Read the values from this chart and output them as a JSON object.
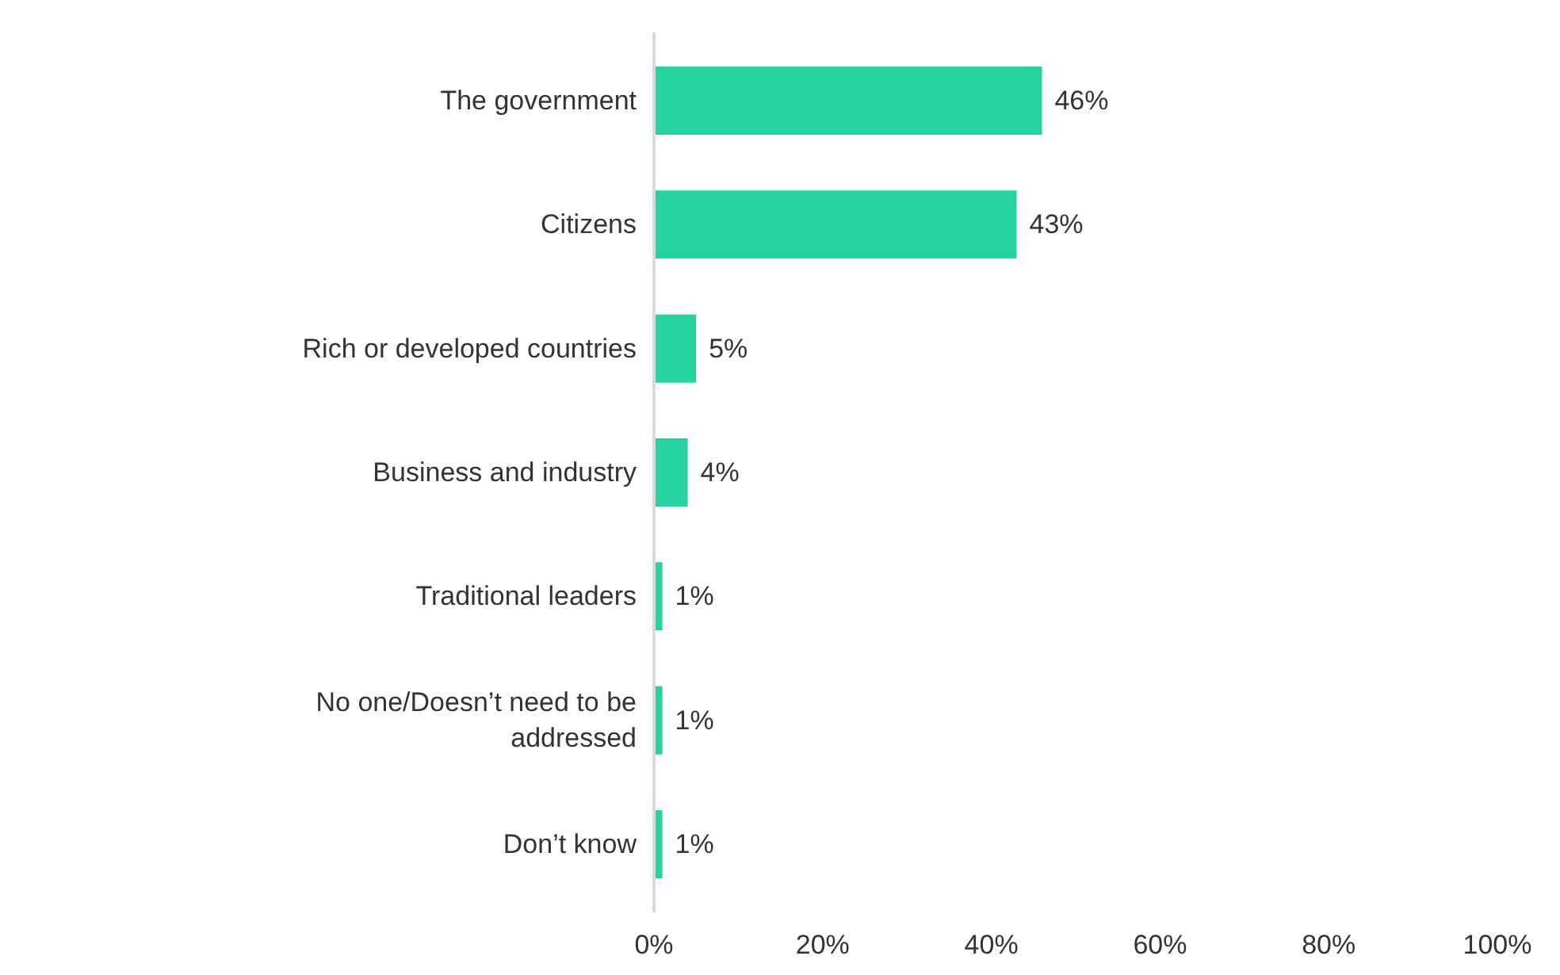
{
  "chart_data": {
    "type": "bar",
    "orientation": "horizontal",
    "categories": [
      "The government",
      "Citizens",
      "Rich or developed countries",
      "Business and industry",
      "Traditional leaders",
      "No one/Doesn’t need to be addressed",
      "Don’t know"
    ],
    "values": [
      46,
      43,
      5,
      4,
      1,
      1,
      1
    ],
    "value_labels": [
      "46%",
      "43%",
      "5%",
      "4%",
      "1%",
      "1%",
      "1%"
    ],
    "color": "#24d3a0",
    "xlim": [
      0,
      100
    ],
    "xticks": [
      {
        "value": 0,
        "label": "0%"
      },
      {
        "value": 20,
        "label": "20%"
      },
      {
        "value": 40,
        "label": "40%"
      },
      {
        "value": 60,
        "label": "60%"
      },
      {
        "value": 80,
        "label": "80%"
      },
      {
        "value": 100,
        "label": "100%"
      }
    ],
    "grid": false
  }
}
